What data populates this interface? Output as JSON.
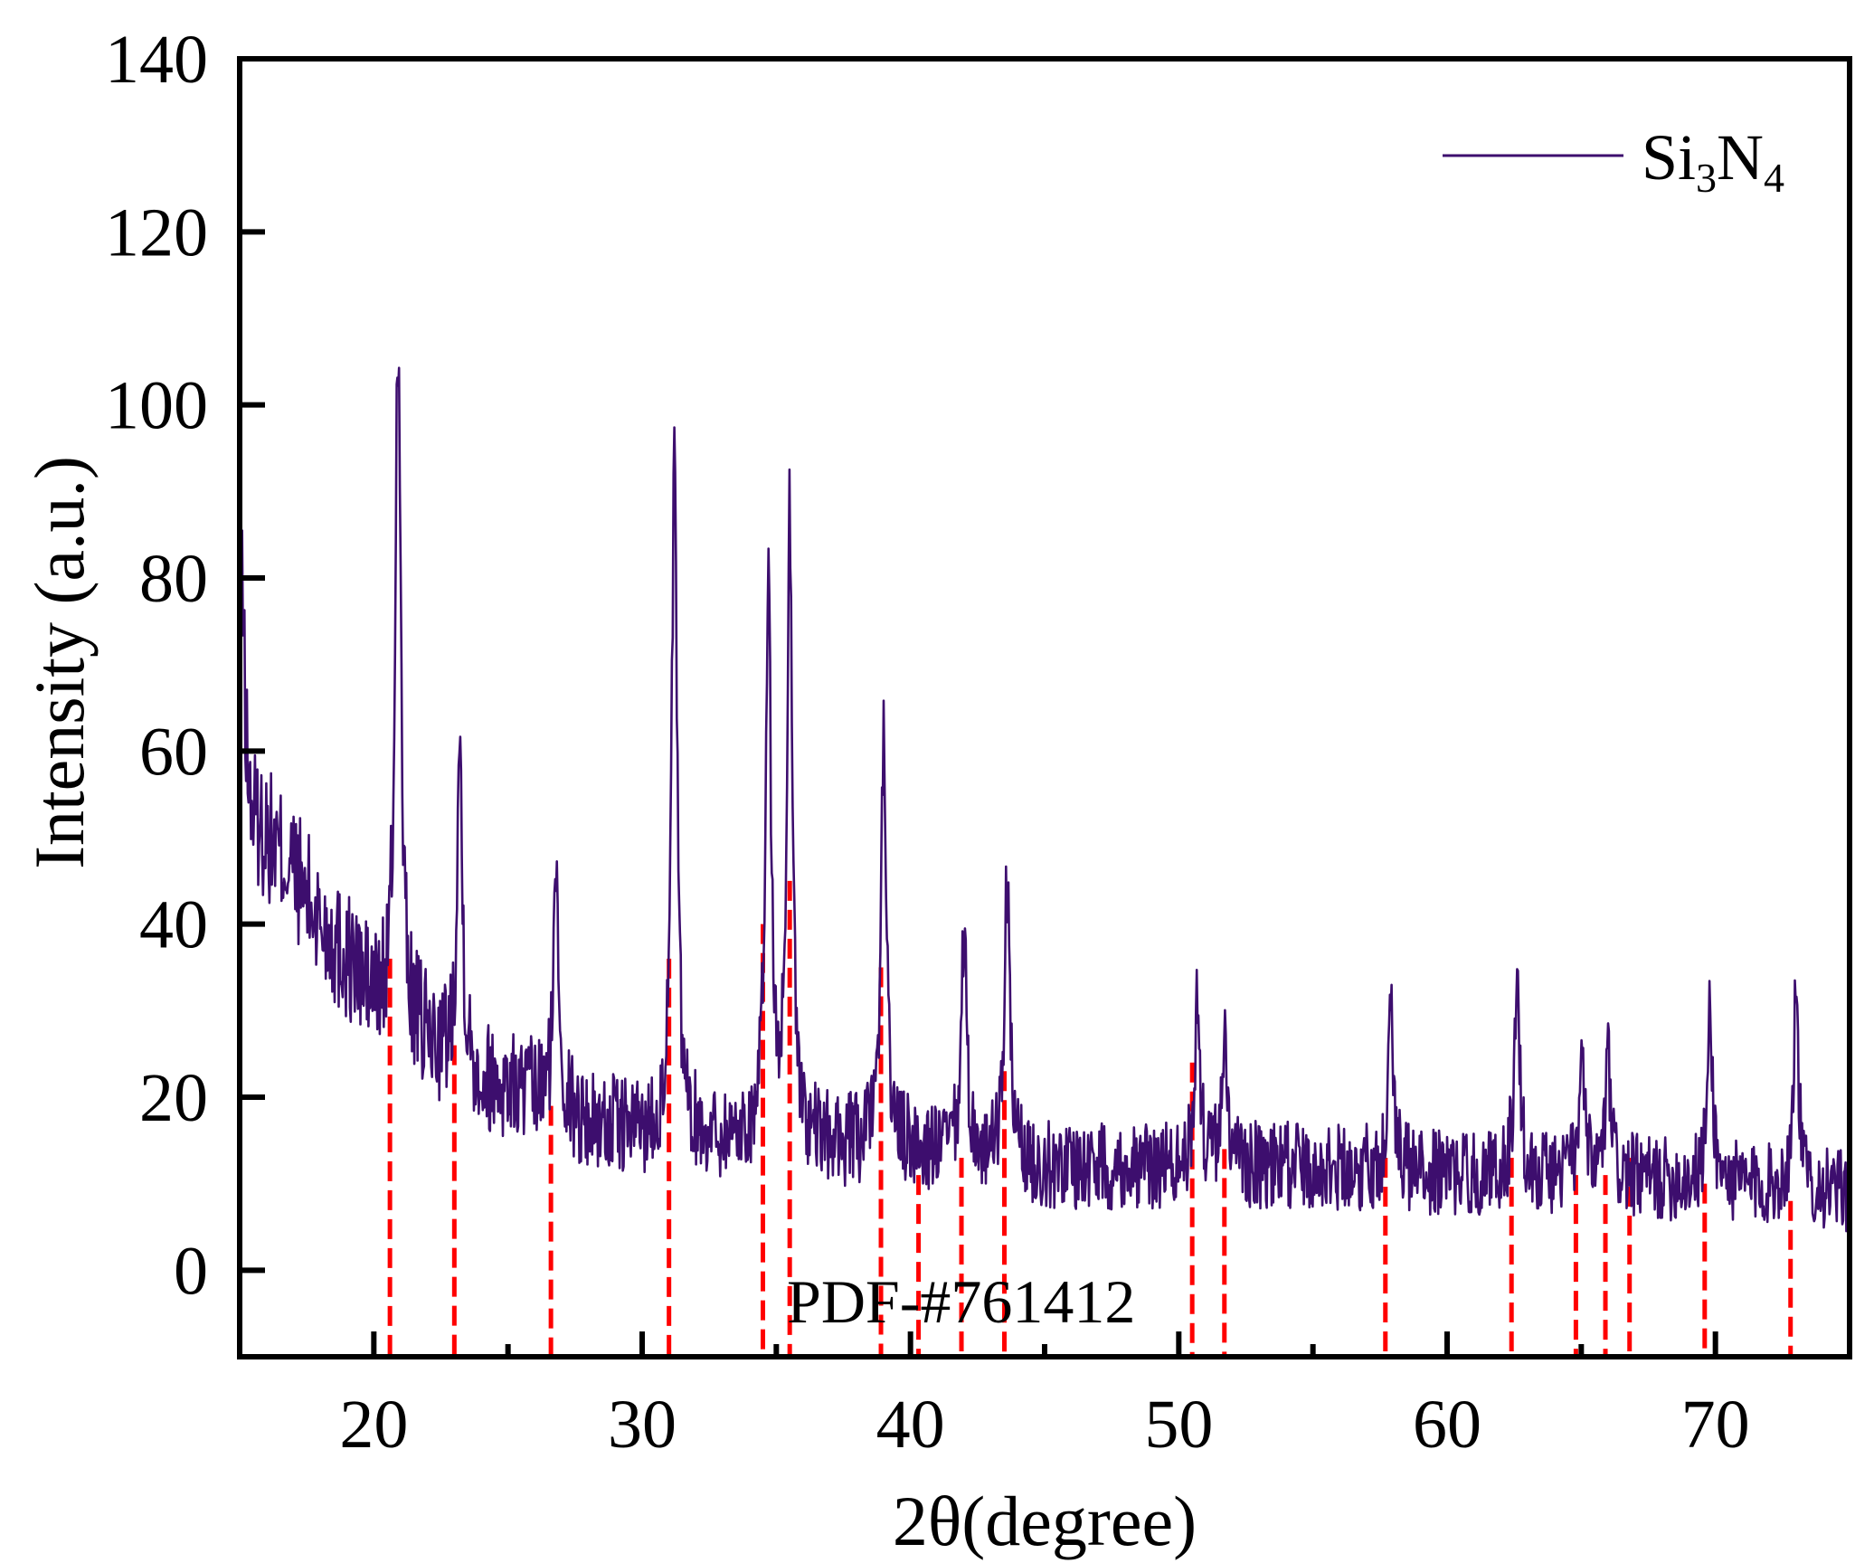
{
  "chart_data": {
    "type": "line",
    "xlabel": "2θ(degree)",
    "ylabel": "Intensity (a.u.)",
    "xlim": [
      15,
      75
    ],
    "ylim": [
      -10,
      140
    ],
    "x_ticks": [
      20,
      30,
      40,
      50,
      60,
      70
    ],
    "x_minor_ticks": [
      25,
      35,
      45,
      55,
      65
    ],
    "y_ticks": [
      0,
      20,
      40,
      60,
      80,
      100,
      120,
      140
    ],
    "grid": false,
    "legend": {
      "position": "top-right",
      "entries": [
        "Si3N4"
      ]
    },
    "series": [
      {
        "name": "Si3N4",
        "label_main": "Si",
        "label_sub1": "3",
        "label_mid": "N",
        "label_sub2": "4",
        "color": "#3d0e6e",
        "baseline": [
          [
            15,
            52
          ],
          [
            16,
            50
          ],
          [
            17,
            46
          ],
          [
            18,
            40
          ],
          [
            19,
            36
          ],
          [
            20,
            31
          ],
          [
            22,
            26
          ],
          [
            24,
            22
          ],
          [
            26,
            20
          ],
          [
            28,
            17
          ],
          [
            30,
            16
          ],
          [
            34,
            15
          ],
          [
            40,
            14
          ],
          [
            45,
            12
          ],
          [
            50,
            12
          ],
          [
            55,
            12
          ],
          [
            60,
            11
          ],
          [
            65,
            11
          ],
          [
            70,
            10
          ],
          [
            75,
            9
          ]
        ],
        "peaks": [
          [
            15.1,
            78
          ],
          [
            20.9,
            110
          ],
          [
            23.2,
            61
          ],
          [
            26.8,
            46
          ],
          [
            31.2,
            93
          ],
          [
            34.7,
            80
          ],
          [
            35.5,
            87
          ],
          [
            39.0,
            62
          ],
          [
            42.0,
            39
          ],
          [
            43.6,
            45
          ],
          [
            50.7,
            31
          ],
          [
            51.7,
            27
          ],
          [
            57.9,
            31
          ],
          [
            62.6,
            34
          ],
          [
            65.0,
            24
          ],
          [
            66.0,
            24
          ],
          [
            69.8,
            30
          ],
          [
            73.0,
            32
          ]
        ],
        "noise_amplitude": 6
      }
    ],
    "reference": {
      "label": "PDF-#761412",
      "color": "#ff0000",
      "positions": [
        20.6,
        23.0,
        26.6,
        31.0,
        34.5,
        35.5,
        38.9,
        40.3,
        41.9,
        43.5,
        50.5,
        51.7,
        57.7,
        62.4,
        64.8,
        65.9,
        66.8,
        69.6,
        72.8
      ],
      "tops": [
        36,
        26,
        19,
        36,
        40,
        45,
        35,
        11,
        13,
        23,
        24,
        14,
        13,
        13,
        11,
        11,
        13,
        10,
        8
      ]
    }
  }
}
